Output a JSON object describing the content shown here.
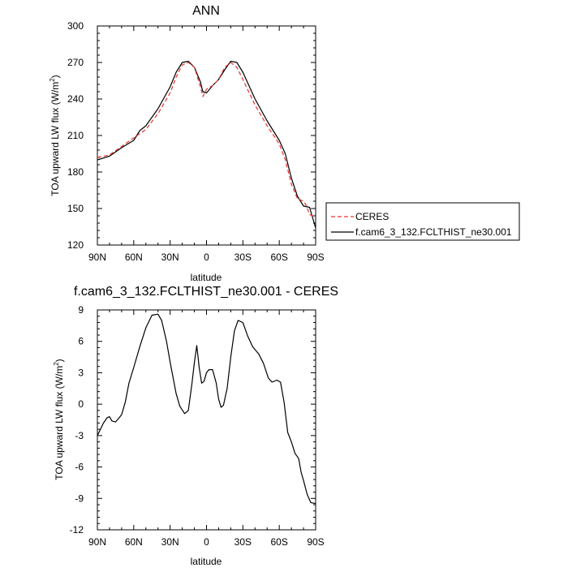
{
  "chart_data": [
    {
      "type": "line",
      "title": "ANN",
      "xlabel": "latitude",
      "ylabel": "TOA upward LW flux (W/m",
      "ylabel_sup": "2",
      "ylabel_close": ")",
      "xlim": [
        90,
        -90
      ],
      "ylim": [
        120,
        300
      ],
      "x_ticks": [
        {
          "value": 90,
          "label": "90N"
        },
        {
          "value": 60,
          "label": "60N"
        },
        {
          "value": 30,
          "label": "30N"
        },
        {
          "value": 0,
          "label": "0"
        },
        {
          "value": -30,
          "label": "30S"
        },
        {
          "value": -60,
          "label": "60S"
        },
        {
          "value": -90,
          "label": "90S"
        }
      ],
      "y_ticks": [
        120,
        150,
        180,
        210,
        240,
        270,
        300
      ],
      "legend_placement": "right",
      "series": [
        {
          "name": "CERES",
          "color": "#e8312c",
          "dash": true,
          "points": [
            [
              90,
              192
            ],
            [
              80,
              194
            ],
            [
              70,
              201
            ],
            [
              60,
              208
            ],
            [
              50,
              215
            ],
            [
              40,
              228
            ],
            [
              30,
              245
            ],
            [
              25,
              258
            ],
            [
              20,
              268
            ],
            [
              15,
              270
            ],
            [
              10,
              266
            ],
            [
              5,
              250
            ],
            [
              3,
              242
            ],
            [
              0,
              248
            ],
            [
              -5,
              251
            ],
            [
              -10,
              256
            ],
            [
              -15,
              266
            ],
            [
              -20,
              270
            ],
            [
              -25,
              266
            ],
            [
              -30,
              256
            ],
            [
              -40,
              235
            ],
            [
              -50,
              218
            ],
            [
              -60,
              203
            ],
            [
              -65,
              190
            ],
            [
              -70,
              170
            ],
            [
              -75,
              158
            ],
            [
              -80,
              156
            ],
            [
              -82,
              153
            ],
            [
              -85,
              145
            ],
            [
              -90,
              143
            ]
          ]
        },
        {
          "name": "f.cam6_3_132.FCLTHIST_ne30.001",
          "color": "#000000",
          "dash": false,
          "points": [
            [
              90,
              190
            ],
            [
              80,
              193
            ],
            [
              70,
              200
            ],
            [
              60,
              206
            ],
            [
              55,
              214
            ],
            [
              50,
              218
            ],
            [
              40,
              232
            ],
            [
              30,
              250
            ],
            [
              25,
              262
            ],
            [
              20,
              270
            ],
            [
              15,
              271
            ],
            [
              10,
              266
            ],
            [
              5,
              254
            ],
            [
              3,
              246
            ],
            [
              0,
              245
            ],
            [
              -5,
              251
            ],
            [
              -10,
              256
            ],
            [
              -15,
              264
            ],
            [
              -20,
              271
            ],
            [
              -25,
              270
            ],
            [
              -30,
              262
            ],
            [
              -40,
              240
            ],
            [
              -50,
              222
            ],
            [
              -60,
              206
            ],
            [
              -65,
              195
            ],
            [
              -70,
              175
            ],
            [
              -75,
              160
            ],
            [
              -80,
              152
            ],
            [
              -85,
              151
            ],
            [
              -90,
              134
            ]
          ]
        }
      ]
    },
    {
      "type": "line",
      "title": "f.cam6_3_132.FCLTHIST_ne30.001 - CERES",
      "xlabel": "latitude",
      "ylabel": "TOA upward LW flux (W/m",
      "ylabel_sup": "2",
      "ylabel_close": ")",
      "xlim": [
        90,
        -90
      ],
      "ylim": [
        -12,
        9
      ],
      "x_ticks": [
        {
          "value": 90,
          "label": "90N"
        },
        {
          "value": 60,
          "label": "60N"
        },
        {
          "value": 30,
          "label": "30N"
        },
        {
          "value": 0,
          "label": "0"
        },
        {
          "value": -30,
          "label": "30S"
        },
        {
          "value": -60,
          "label": "60S"
        },
        {
          "value": -90,
          "label": "90S"
        }
      ],
      "y_ticks": [
        -12,
        -9,
        -6,
        -3,
        0,
        3,
        6,
        9
      ],
      "series": [
        {
          "name": "",
          "color": "#000000",
          "dash": false,
          "points": [
            [
              90,
              -3.0
            ],
            [
              85,
              -1.8
            ],
            [
              82,
              -1.3
            ],
            [
              80,
              -1.2
            ],
            [
              78,
              -1.6
            ],
            [
              75,
              -1.7
            ],
            [
              72,
              -1.3
            ],
            [
              70,
              -1.0
            ],
            [
              67,
              0.2
            ],
            [
              64,
              2.0
            ],
            [
              60,
              3.5
            ],
            [
              55,
              5.5
            ],
            [
              50,
              7.3
            ],
            [
              45,
              8.5
            ],
            [
              40,
              8.6
            ],
            [
              37,
              8.0
            ],
            [
              33,
              6.0
            ],
            [
              30,
              4.0
            ],
            [
              25,
              1.0
            ],
            [
              22,
              -0.2
            ],
            [
              18,
              -0.9
            ],
            [
              15,
              -0.6
            ],
            [
              12,
              2.0
            ],
            [
              10,
              4.0
            ],
            [
              8,
              5.6
            ],
            [
              6,
              3.5
            ],
            [
              4,
              2.0
            ],
            [
              2,
              2.2
            ],
            [
              0,
              3.0
            ],
            [
              -2,
              3.3
            ],
            [
              -5,
              3.3
            ],
            [
              -8,
              2.0
            ],
            [
              -10,
              0.5
            ],
            [
              -12,
              -0.3
            ],
            [
              -14,
              -0.1
            ],
            [
              -17,
              1.5
            ],
            [
              -20,
              4.5
            ],
            [
              -23,
              7.0
            ],
            [
              -26,
              8.0
            ],
            [
              -30,
              7.8
            ],
            [
              -34,
              6.5
            ],
            [
              -38,
              5.5
            ],
            [
              -43,
              4.8
            ],
            [
              -47,
              3.9
            ],
            [
              -51,
              2.5
            ],
            [
              -54,
              2.1
            ],
            [
              -58,
              2.3
            ],
            [
              -61,
              2.1
            ],
            [
              -64,
              0.2
            ],
            [
              -67,
              -2.7
            ],
            [
              -70,
              -3.6
            ],
            [
              -73,
              -4.7
            ],
            [
              -76,
              -5.2
            ],
            [
              -78,
              -6.5
            ],
            [
              -80,
              -7.3
            ],
            [
              -83,
              -8.6
            ],
            [
              -86,
              -9.4
            ],
            [
              -90,
              -9.5
            ]
          ]
        }
      ]
    }
  ]
}
